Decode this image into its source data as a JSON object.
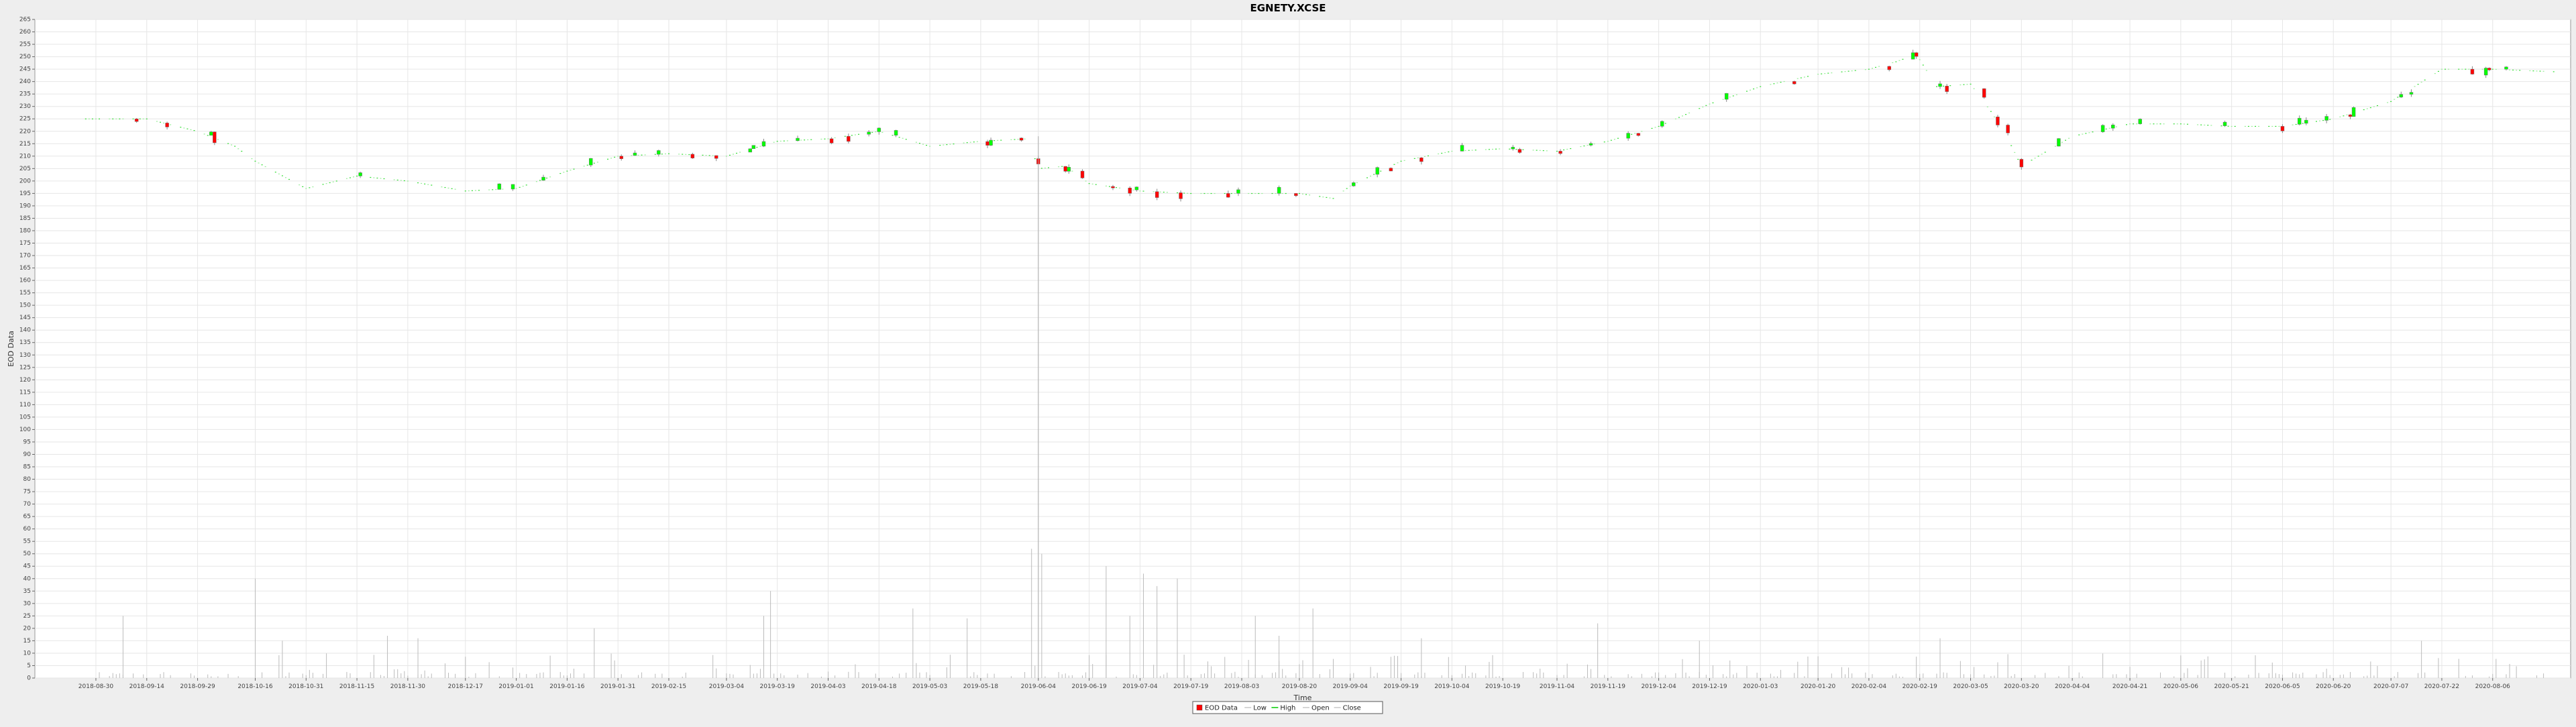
{
  "chart_data": {
    "type": "candlestick",
    "title": "EGNETY.XCSE",
    "xlabel": "Time",
    "ylabel": "EOD Data",
    "ylim": [
      0,
      265
    ],
    "y_tick_step": 5,
    "grid": true,
    "legend_position": "bottom-center",
    "legend": [
      {
        "label": "EOD Data",
        "kind": "box",
        "color": "#ff0000"
      },
      {
        "label": "Low",
        "kind": "dash",
        "color": "#c8c8c8"
      },
      {
        "label": "High",
        "kind": "dash",
        "color": "#00cc00"
      },
      {
        "label": "Open",
        "kind": "dash",
        "color": "#c8c8c8"
      },
      {
        "label": "Close",
        "kind": "dash",
        "color": "#c8c8c8"
      }
    ],
    "colors": {
      "up": "#00ff00",
      "down": "#ff0000",
      "volume": "#bbbbbb",
      "background": "#ffffff",
      "grid": "#e6e6e6"
    },
    "x_ticks": [
      "2018-08-30",
      "2018-09-14",
      "2018-09-29",
      "2018-10-16",
      "2018-10-31",
      "2018-11-15",
      "2018-11-30",
      "2018-12-17",
      "2019-01-01",
      "2019-01-16",
      "2019-01-31",
      "2019-02-15",
      "2019-03-04",
      "2019-03-19",
      "2019-04-03",
      "2019-04-18",
      "2019-05-03",
      "2019-05-18",
      "2019-06-04",
      "2019-06-19",
      "2019-07-04",
      "2019-07-19",
      "2019-08-03",
      "2019-08-20",
      "2019-09-04",
      "2019-09-19",
      "2019-10-04",
      "2019-10-19",
      "2019-11-04",
      "2019-11-19",
      "2019-12-04",
      "2019-12-19",
      "2020-01-03",
      "2020-01-20",
      "2020-02-04",
      "2020-02-19",
      "2020-03-05",
      "2020-03-20",
      "2020-04-04",
      "2020-04-21",
      "2020-05-06",
      "2020-05-21",
      "2020-06-05",
      "2020-06-20",
      "2020-07-07",
      "2020-07-22",
      "2020-08-06"
    ],
    "anchors": [
      [
        "2018-08-27",
        225
      ],
      [
        "2018-09-14",
        225
      ],
      [
        "2018-09-29",
        220
      ],
      [
        "2018-10-10",
        214
      ],
      [
        "2018-10-16",
        208
      ],
      [
        "2018-10-31",
        197
      ],
      [
        "2018-11-15",
        202
      ],
      [
        "2018-11-30",
        200
      ],
      [
        "2018-12-17",
        196
      ],
      [
        "2019-01-01",
        197
      ],
      [
        "2019-01-16",
        204
      ],
      [
        "2019-01-31",
        210
      ],
      [
        "2019-02-15",
        211
      ],
      [
        "2019-03-04",
        210
      ],
      [
        "2019-03-19",
        216
      ],
      [
        "2019-04-03",
        217
      ],
      [
        "2019-04-18",
        220
      ],
      [
        "2019-05-03",
        214
      ],
      [
        "2019-05-18",
        216
      ],
      [
        "2019-06-01",
        217
      ],
      [
        "2019-06-04",
        205
      ],
      [
        "2019-06-12",
        206
      ],
      [
        "2019-06-19",
        199
      ],
      [
        "2019-07-04",
        196
      ],
      [
        "2019-07-19",
        195
      ],
      [
        "2019-08-03",
        195
      ],
      [
        "2019-08-20",
        195
      ],
      [
        "2019-08-30",
        193
      ],
      [
        "2019-09-04",
        198
      ],
      [
        "2019-09-19",
        208
      ],
      [
        "2019-10-04",
        212
      ],
      [
        "2019-10-19",
        213
      ],
      [
        "2019-11-04",
        212
      ],
      [
        "2019-11-19",
        216
      ],
      [
        "2019-12-04",
        222
      ],
      [
        "2019-12-19",
        231
      ],
      [
        "2020-01-03",
        238
      ],
      [
        "2020-01-20",
        243
      ],
      [
        "2020-02-04",
        245
      ],
      [
        "2020-02-12",
        248
      ],
      [
        "2020-02-18",
        251
      ],
      [
        "2020-02-24",
        238
      ],
      [
        "2020-03-05",
        239
      ],
      [
        "2020-03-11",
        228
      ],
      [
        "2020-03-16",
        217
      ],
      [
        "2020-03-20",
        206
      ],
      [
        "2020-04-04",
        218
      ],
      [
        "2020-04-21",
        223
      ],
      [
        "2020-05-06",
        223
      ],
      [
        "2020-05-21",
        222
      ],
      [
        "2020-06-05",
        222
      ],
      [
        "2020-06-20",
        225
      ],
      [
        "2020-07-07",
        232
      ],
      [
        "2020-07-22",
        245
      ],
      [
        "2020-08-06",
        245
      ],
      [
        "2020-08-24",
        244
      ]
    ],
    "volume_spikes": [
      [
        "2018-09-07",
        25
      ],
      [
        "2018-10-16",
        40
      ],
      [
        "2018-10-24",
        15
      ],
      [
        "2018-11-24",
        17
      ],
      [
        "2018-12-03",
        16
      ],
      [
        "2019-01-24",
        20
      ],
      [
        "2019-03-15",
        25
      ],
      [
        "2019-03-17",
        35
      ],
      [
        "2019-04-28",
        28
      ],
      [
        "2019-05-14",
        24
      ],
      [
        "2019-06-02",
        52
      ],
      [
        "2019-06-05",
        50
      ],
      [
        "2019-06-24",
        45
      ],
      [
        "2019-07-01",
        25
      ],
      [
        "2019-07-05",
        42
      ],
      [
        "2019-07-09",
        37
      ],
      [
        "2019-07-15",
        40
      ],
      [
        "2019-08-07",
        25
      ],
      [
        "2019-08-14",
        17
      ],
      [
        "2019-08-24",
        28
      ],
      [
        "2019-09-25",
        16
      ],
      [
        "2019-11-16",
        22
      ],
      [
        "2019-12-16",
        15
      ],
      [
        "2020-02-25",
        16
      ],
      [
        "2020-07-16",
        15
      ]
    ]
  }
}
